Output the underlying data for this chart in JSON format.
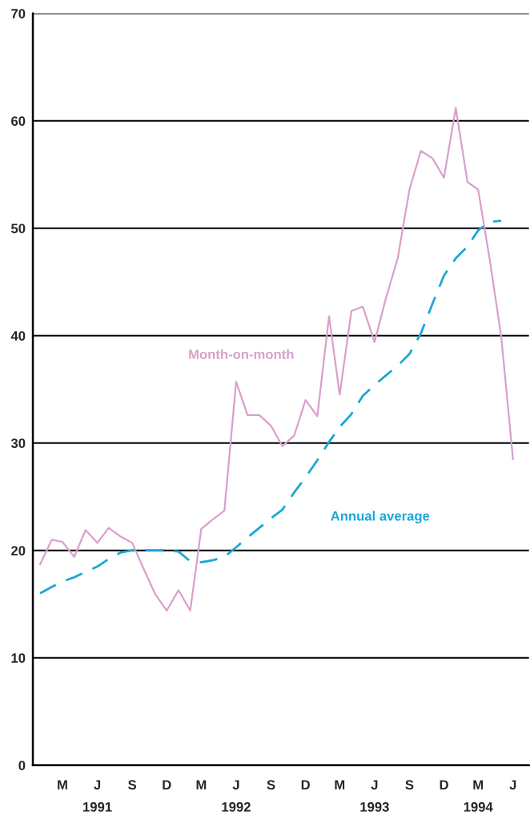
{
  "chart_data": {
    "type": "line",
    "x": [
      "1991-01",
      "1991-02",
      "1991-03",
      "1991-04",
      "1991-05",
      "1991-06",
      "1991-07",
      "1991-08",
      "1991-09",
      "1991-10",
      "1991-11",
      "1991-12",
      "1992-01",
      "1992-02",
      "1992-03",
      "1992-04",
      "1992-05",
      "1992-06",
      "1992-07",
      "1992-08",
      "1992-09",
      "1992-10",
      "1992-11",
      "1992-12",
      "1993-01",
      "1993-02",
      "1993-03",
      "1993-04",
      "1993-05",
      "1993-06",
      "1993-07",
      "1993-08",
      "1993-09",
      "1993-10",
      "1993-11",
      "1993-12",
      "1994-01",
      "1994-02",
      "1994-03",
      "1994-04",
      "1994-05",
      "1994-06"
    ],
    "series": [
      {
        "name": "Month-on-month",
        "color": "#d9a0cc",
        "line_style": "solid",
        "values": [
          18.7,
          21.0,
          20.8,
          19.4,
          21.9,
          20.7,
          22.1,
          21.3,
          20.7,
          18.3,
          15.9,
          14.4,
          16.3,
          14.4,
          22.0,
          22.9,
          23.7,
          35.7,
          32.6,
          32.6,
          31.6,
          29.7,
          30.7,
          34.0,
          32.5,
          41.8,
          34.5,
          42.3,
          42.7,
          39.4,
          43.5,
          47.2,
          53.6,
          57.2,
          56.5,
          54.7,
          61.2,
          54.3,
          53.6,
          47.0,
          39.9,
          28.5
        ]
      },
      {
        "name": "Annual average",
        "color": "#1aa7d6",
        "line_style": "dashed",
        "values": [
          16.0,
          16.6,
          17.1,
          17.5,
          18.0,
          18.5,
          19.2,
          19.8,
          20.0,
          20.0,
          20.0,
          20.0,
          19.9,
          19.0,
          18.9,
          19.1,
          19.4,
          20.3,
          21.2,
          22.1,
          23.0,
          23.8,
          25.4,
          26.8,
          28.4,
          30.1,
          31.5,
          32.7,
          34.4,
          35.4,
          36.3,
          37.2,
          38.3,
          40.2,
          43.0,
          45.6,
          47.2,
          48.3,
          49.8,
          50.6,
          50.7,
          null
        ]
      }
    ],
    "xlim": [
      "1990-12-13",
      "1994-07-13"
    ],
    "xticks": [
      {
        "value": "1991-03",
        "label": "M"
      },
      {
        "value": "1991-06",
        "label": "J\n1991"
      },
      {
        "value": "1991-09",
        "label": "S"
      },
      {
        "value": "1991-12",
        "label": "D"
      },
      {
        "value": "1992-03",
        "label": "M"
      },
      {
        "value": "1992-06",
        "label": "J\n1992"
      },
      {
        "value": "1992-09",
        "label": "S"
      },
      {
        "value": "1992-12",
        "label": "D"
      },
      {
        "value": "1993-03",
        "label": "M"
      },
      {
        "value": "1993-06",
        "label": "J\n1993"
      },
      {
        "value": "1993-09",
        "label": "S"
      },
      {
        "value": "1993-12",
        "label": "D"
      },
      {
        "value": "1994-03",
        "label": "M\n1994"
      },
      {
        "value": "1994-06",
        "label": "J"
      }
    ],
    "ylim": [
      0,
      70
    ],
    "yticks": [
      0,
      10,
      20,
      30,
      40,
      50,
      60,
      70
    ],
    "grid": "y",
    "legend": false,
    "marker": "none"
  }
}
